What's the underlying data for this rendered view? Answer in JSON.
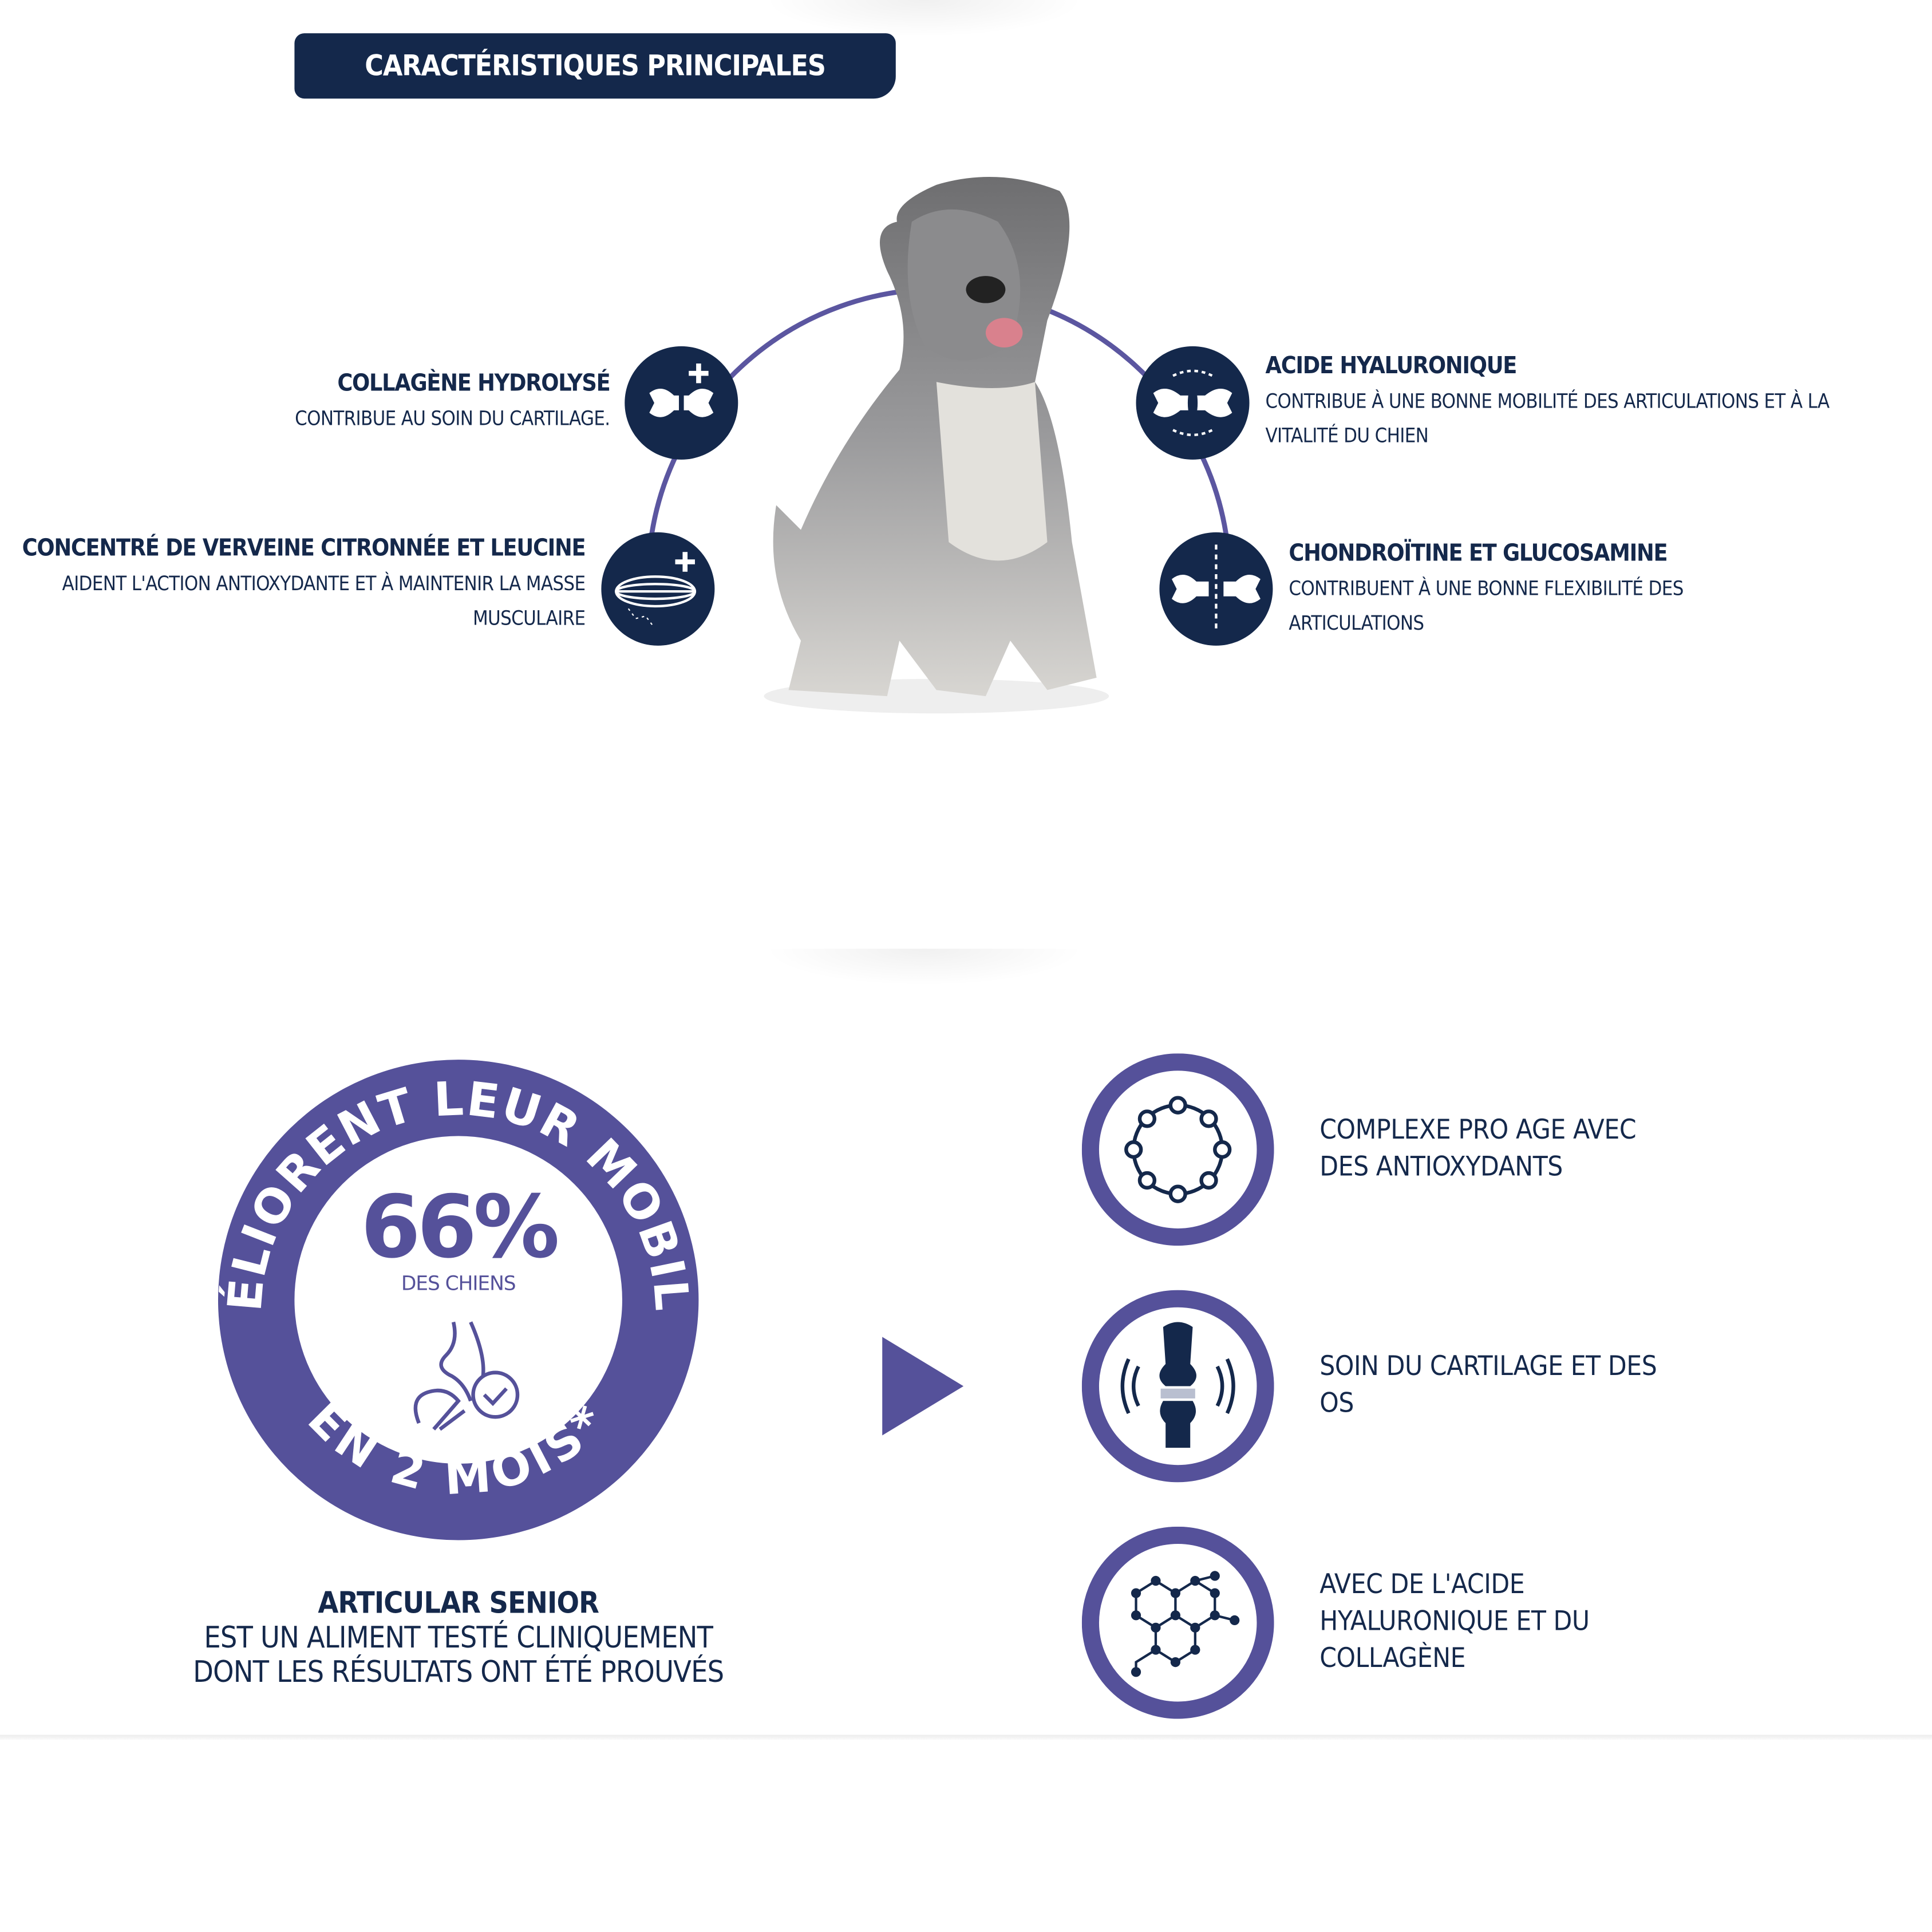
{
  "header": {
    "title": "CARACTÉRISTIQUES PRINCIPALES"
  },
  "features": [
    {
      "title": "COLLAGÈNE HYDROLYSÉ",
      "desc": "CONTRIBUE AU SOIN DU CARTILAGE.",
      "icon": "bone-joint-plus-icon"
    },
    {
      "title": "CONCENTRÉ DE VERVEINE CITRONNÉE ET LEUCINE",
      "desc": "AIDENT L'ACTION ANTIOXYDANTE ET À MAINTENIR LA MASSE MUSCULAIRE",
      "icon": "muscle-plus-icon"
    },
    {
      "title": "ACIDE HYALURONIQUE",
      "desc": "CONTRIBUE À UNE BONNE MOBILITÉ DES ARTICULATIONS ET À LA VITALITÉ DU CHIEN",
      "icon": "joint-lubrication-icon"
    },
    {
      "title": "CHONDROÏTINE ET GLUCOSAMINE",
      "desc": "CONTRIBUENT À UNE BONNE FLEXIBILITÉ DES ARTICULATIONS",
      "icon": "joint-flex-icon"
    }
  ],
  "badge": {
    "arc_top": "AMÉLIORENT LEUR MOBILITÉ",
    "arc_bottom": "EN 2 MOIS*",
    "percent": "66%",
    "sub": "DES CHIENS",
    "icon": "hip-joint-check-icon"
  },
  "claim": {
    "product": "ARTICULAR SENIOR",
    "line1": "EST UN ALIMENT TESTÉ CLINIQUEMENT",
    "line2": "DONT LES RÉSULTATS ONT ÉTÉ PROUVÉS"
  },
  "benefits": [
    {
      "lines": [
        "COMPLEXE PRO AGE AVEC",
        "DES ANTIOXYDANTS"
      ],
      "icon": "molecule-ring-icon"
    },
    {
      "lines": [
        "SOIN DU CARTILAGE ET DES",
        "OS"
      ],
      "icon": "knee-joint-icon"
    },
    {
      "lines": [
        "AVEC DE L'ACIDE",
        "HYALURONIQUE ET DU",
        "COLLAGÈNE"
      ],
      "icon": "molecule-network-icon"
    }
  ],
  "colors": {
    "navy": "#14284b",
    "purple": "#55519a"
  }
}
